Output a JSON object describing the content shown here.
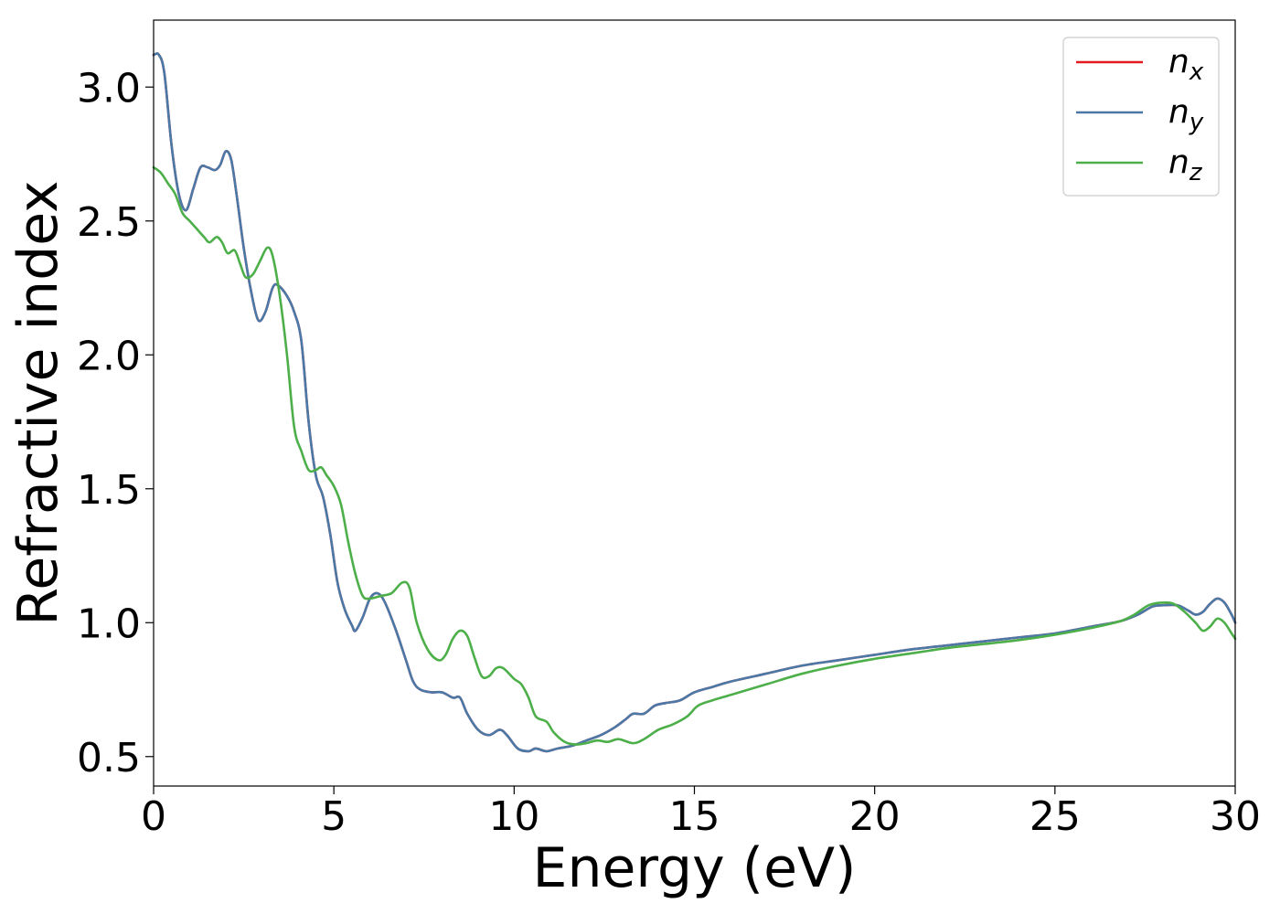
{
  "chart_data": {
    "type": "line",
    "xlabel": "Energy (eV)",
    "ylabel": "Refractive index",
    "xlim": [
      0,
      30
    ],
    "ylim": [
      0.39,
      3.25
    ],
    "xticks": [
      0,
      5,
      10,
      15,
      20,
      25,
      30
    ],
    "yticks": [
      0.5,
      1.0,
      1.5,
      2.0,
      2.5,
      3.0
    ],
    "xtick_labels": [
      "0",
      "5",
      "10",
      "15",
      "20",
      "25",
      "30"
    ],
    "ytick_labels": [
      "0.5",
      "1.0",
      "1.5",
      "2.0",
      "2.5",
      "3.0"
    ],
    "grid": false,
    "legend_position": "top-right",
    "series": [
      {
        "name": "n",
        "subscript": "x",
        "color": "#e41a1c",
        "points": [
          [
            0,
            3.12
          ],
          [
            0.15,
            3.12
          ],
          [
            0.3,
            3.05
          ],
          [
            0.5,
            2.78
          ],
          [
            0.7,
            2.6
          ],
          [
            0.9,
            2.54
          ],
          [
            1.1,
            2.62
          ],
          [
            1.3,
            2.7
          ],
          [
            1.5,
            2.7
          ],
          [
            1.7,
            2.69
          ],
          [
            1.85,
            2.71
          ],
          [
            2.0,
            2.76
          ],
          [
            2.15,
            2.73
          ],
          [
            2.3,
            2.6
          ],
          [
            2.5,
            2.4
          ],
          [
            2.7,
            2.24
          ],
          [
            2.9,
            2.13
          ],
          [
            3.1,
            2.16
          ],
          [
            3.3,
            2.25
          ],
          [
            3.45,
            2.26
          ],
          [
            3.7,
            2.22
          ],
          [
            3.9,
            2.16
          ],
          [
            4.1,
            2.05
          ],
          [
            4.3,
            1.75
          ],
          [
            4.5,
            1.55
          ],
          [
            4.7,
            1.47
          ],
          [
            4.9,
            1.33
          ],
          [
            5.1,
            1.15
          ],
          [
            5.3,
            1.05
          ],
          [
            5.5,
            0.99
          ],
          [
            5.6,
            0.97
          ],
          [
            5.8,
            1.02
          ],
          [
            6.0,
            1.09
          ],
          [
            6.2,
            1.11
          ],
          [
            6.4,
            1.08
          ],
          [
            6.7,
            0.98
          ],
          [
            7.0,
            0.86
          ],
          [
            7.2,
            0.78
          ],
          [
            7.4,
            0.75
          ],
          [
            7.7,
            0.74
          ],
          [
            8.0,
            0.74
          ],
          [
            8.3,
            0.72
          ],
          [
            8.5,
            0.72
          ],
          [
            8.7,
            0.66
          ],
          [
            9.0,
            0.6
          ],
          [
            9.3,
            0.58
          ],
          [
            9.6,
            0.6
          ],
          [
            9.8,
            0.58
          ],
          [
            10.1,
            0.53
          ],
          [
            10.4,
            0.52
          ],
          [
            10.6,
            0.53
          ],
          [
            10.9,
            0.52
          ],
          [
            11.2,
            0.53
          ],
          [
            11.6,
            0.54
          ],
          [
            12.0,
            0.56
          ],
          [
            12.4,
            0.58
          ],
          [
            12.8,
            0.61
          ],
          [
            13.1,
            0.64
          ],
          [
            13.3,
            0.66
          ],
          [
            13.6,
            0.66
          ],
          [
            13.9,
            0.69
          ],
          [
            14.2,
            0.7
          ],
          [
            14.6,
            0.71
          ],
          [
            15.0,
            0.74
          ],
          [
            15.5,
            0.76
          ],
          [
            16.0,
            0.78
          ],
          [
            17.0,
            0.81
          ],
          [
            18.0,
            0.84
          ],
          [
            19.0,
            0.86
          ],
          [
            20.0,
            0.88
          ],
          [
            21.0,
            0.9
          ],
          [
            22.0,
            0.915
          ],
          [
            23.0,
            0.93
          ],
          [
            24.0,
            0.945
          ],
          [
            25.0,
            0.96
          ],
          [
            26.0,
            0.985
          ],
          [
            26.8,
            1.005
          ],
          [
            27.3,
            1.03
          ],
          [
            27.7,
            1.06
          ],
          [
            28.0,
            1.065
          ],
          [
            28.4,
            1.065
          ],
          [
            28.7,
            1.045
          ],
          [
            28.9,
            1.03
          ],
          [
            29.1,
            1.04
          ],
          [
            29.3,
            1.07
          ],
          [
            29.5,
            1.09
          ],
          [
            29.7,
            1.075
          ],
          [
            29.9,
            1.03
          ],
          [
            30.0,
            1.0
          ]
        ]
      },
      {
        "name": "n",
        "subscript": "y",
        "color": "#4a79a8",
        "points": [
          [
            0,
            3.12
          ],
          [
            0.15,
            3.12
          ],
          [
            0.3,
            3.05
          ],
          [
            0.5,
            2.78
          ],
          [
            0.7,
            2.6
          ],
          [
            0.9,
            2.54
          ],
          [
            1.1,
            2.62
          ],
          [
            1.3,
            2.7
          ],
          [
            1.5,
            2.7
          ],
          [
            1.7,
            2.69
          ],
          [
            1.85,
            2.71
          ],
          [
            2.0,
            2.76
          ],
          [
            2.15,
            2.73
          ],
          [
            2.3,
            2.6
          ],
          [
            2.5,
            2.4
          ],
          [
            2.7,
            2.24
          ],
          [
            2.9,
            2.13
          ],
          [
            3.1,
            2.16
          ],
          [
            3.3,
            2.25
          ],
          [
            3.45,
            2.26
          ],
          [
            3.7,
            2.22
          ],
          [
            3.9,
            2.16
          ],
          [
            4.1,
            2.05
          ],
          [
            4.3,
            1.75
          ],
          [
            4.5,
            1.55
          ],
          [
            4.7,
            1.47
          ],
          [
            4.9,
            1.33
          ],
          [
            5.1,
            1.15
          ],
          [
            5.3,
            1.05
          ],
          [
            5.5,
            0.99
          ],
          [
            5.6,
            0.97
          ],
          [
            5.8,
            1.02
          ],
          [
            6.0,
            1.09
          ],
          [
            6.2,
            1.11
          ],
          [
            6.4,
            1.08
          ],
          [
            6.7,
            0.98
          ],
          [
            7.0,
            0.86
          ],
          [
            7.2,
            0.78
          ],
          [
            7.4,
            0.75
          ],
          [
            7.7,
            0.74
          ],
          [
            8.0,
            0.74
          ],
          [
            8.3,
            0.72
          ],
          [
            8.5,
            0.72
          ],
          [
            8.7,
            0.66
          ],
          [
            9.0,
            0.6
          ],
          [
            9.3,
            0.58
          ],
          [
            9.6,
            0.6
          ],
          [
            9.8,
            0.58
          ],
          [
            10.1,
            0.53
          ],
          [
            10.4,
            0.52
          ],
          [
            10.6,
            0.53
          ],
          [
            10.9,
            0.52
          ],
          [
            11.2,
            0.53
          ],
          [
            11.6,
            0.54
          ],
          [
            12.0,
            0.56
          ],
          [
            12.4,
            0.58
          ],
          [
            12.8,
            0.61
          ],
          [
            13.1,
            0.64
          ],
          [
            13.3,
            0.66
          ],
          [
            13.6,
            0.66
          ],
          [
            13.9,
            0.69
          ],
          [
            14.2,
            0.7
          ],
          [
            14.6,
            0.71
          ],
          [
            15.0,
            0.74
          ],
          [
            15.5,
            0.76
          ],
          [
            16.0,
            0.78
          ],
          [
            17.0,
            0.81
          ],
          [
            18.0,
            0.84
          ],
          [
            19.0,
            0.86
          ],
          [
            20.0,
            0.88
          ],
          [
            21.0,
            0.9
          ],
          [
            22.0,
            0.915
          ],
          [
            23.0,
            0.93
          ],
          [
            24.0,
            0.945
          ],
          [
            25.0,
            0.96
          ],
          [
            26.0,
            0.985
          ],
          [
            26.8,
            1.005
          ],
          [
            27.3,
            1.03
          ],
          [
            27.7,
            1.06
          ],
          [
            28.0,
            1.065
          ],
          [
            28.4,
            1.065
          ],
          [
            28.7,
            1.045
          ],
          [
            28.9,
            1.03
          ],
          [
            29.1,
            1.04
          ],
          [
            29.3,
            1.07
          ],
          [
            29.5,
            1.09
          ],
          [
            29.7,
            1.075
          ],
          [
            29.9,
            1.03
          ],
          [
            30.0,
            1.0
          ]
        ]
      },
      {
        "name": "n",
        "subscript": "z",
        "color": "#4daf4a",
        "points": [
          [
            0,
            2.7
          ],
          [
            0.2,
            2.68
          ],
          [
            0.4,
            2.64
          ],
          [
            0.6,
            2.6
          ],
          [
            0.8,
            2.53
          ],
          [
            1.0,
            2.5
          ],
          [
            1.2,
            2.47
          ],
          [
            1.4,
            2.44
          ],
          [
            1.55,
            2.42
          ],
          [
            1.75,
            2.44
          ],
          [
            1.9,
            2.42
          ],
          [
            2.05,
            2.38
          ],
          [
            2.25,
            2.39
          ],
          [
            2.4,
            2.34
          ],
          [
            2.55,
            2.29
          ],
          [
            2.75,
            2.3
          ],
          [
            2.95,
            2.35
          ],
          [
            3.15,
            2.4
          ],
          [
            3.3,
            2.37
          ],
          [
            3.5,
            2.22
          ],
          [
            3.7,
            2.0
          ],
          [
            3.9,
            1.73
          ],
          [
            4.1,
            1.64
          ],
          [
            4.3,
            1.57
          ],
          [
            4.5,
            1.57
          ],
          [
            4.65,
            1.58
          ],
          [
            4.8,
            1.55
          ],
          [
            5.0,
            1.51
          ],
          [
            5.2,
            1.44
          ],
          [
            5.4,
            1.3
          ],
          [
            5.6,
            1.18
          ],
          [
            5.8,
            1.1
          ],
          [
            6.0,
            1.09
          ],
          [
            6.3,
            1.1
          ],
          [
            6.6,
            1.11
          ],
          [
            6.9,
            1.15
          ],
          [
            7.1,
            1.13
          ],
          [
            7.3,
            1.0
          ],
          [
            7.6,
            0.9
          ],
          [
            7.9,
            0.86
          ],
          [
            8.1,
            0.88
          ],
          [
            8.3,
            0.94
          ],
          [
            8.5,
            0.97
          ],
          [
            8.7,
            0.95
          ],
          [
            8.9,
            0.87
          ],
          [
            9.1,
            0.8
          ],
          [
            9.3,
            0.8
          ],
          [
            9.5,
            0.83
          ],
          [
            9.7,
            0.83
          ],
          [
            10.0,
            0.79
          ],
          [
            10.2,
            0.77
          ],
          [
            10.4,
            0.72
          ],
          [
            10.6,
            0.65
          ],
          [
            10.9,
            0.63
          ],
          [
            11.1,
            0.59
          ],
          [
            11.4,
            0.555
          ],
          [
            11.7,
            0.545
          ],
          [
            12.0,
            0.55
          ],
          [
            12.3,
            0.56
          ],
          [
            12.6,
            0.555
          ],
          [
            12.9,
            0.565
          ],
          [
            13.3,
            0.55
          ],
          [
            13.6,
            0.565
          ],
          [
            14.0,
            0.6
          ],
          [
            14.4,
            0.62
          ],
          [
            14.8,
            0.65
          ],
          [
            15.1,
            0.69
          ],
          [
            15.5,
            0.71
          ],
          [
            16.0,
            0.73
          ],
          [
            17.0,
            0.77
          ],
          [
            18.0,
            0.81
          ],
          [
            19.0,
            0.84
          ],
          [
            20.0,
            0.865
          ],
          [
            21.0,
            0.885
          ],
          [
            22.0,
            0.905
          ],
          [
            23.0,
            0.92
          ],
          [
            24.0,
            0.935
          ],
          [
            25.0,
            0.955
          ],
          [
            26.0,
            0.98
          ],
          [
            26.8,
            1.005
          ],
          [
            27.2,
            1.03
          ],
          [
            27.6,
            1.065
          ],
          [
            28.0,
            1.075
          ],
          [
            28.3,
            1.07
          ],
          [
            28.6,
            1.04
          ],
          [
            28.9,
            1.0
          ],
          [
            29.1,
            0.97
          ],
          [
            29.3,
            0.985
          ],
          [
            29.5,
            1.015
          ],
          [
            29.7,
            1.0
          ],
          [
            29.9,
            0.96
          ],
          [
            30.0,
            0.94
          ]
        ]
      }
    ]
  }
}
